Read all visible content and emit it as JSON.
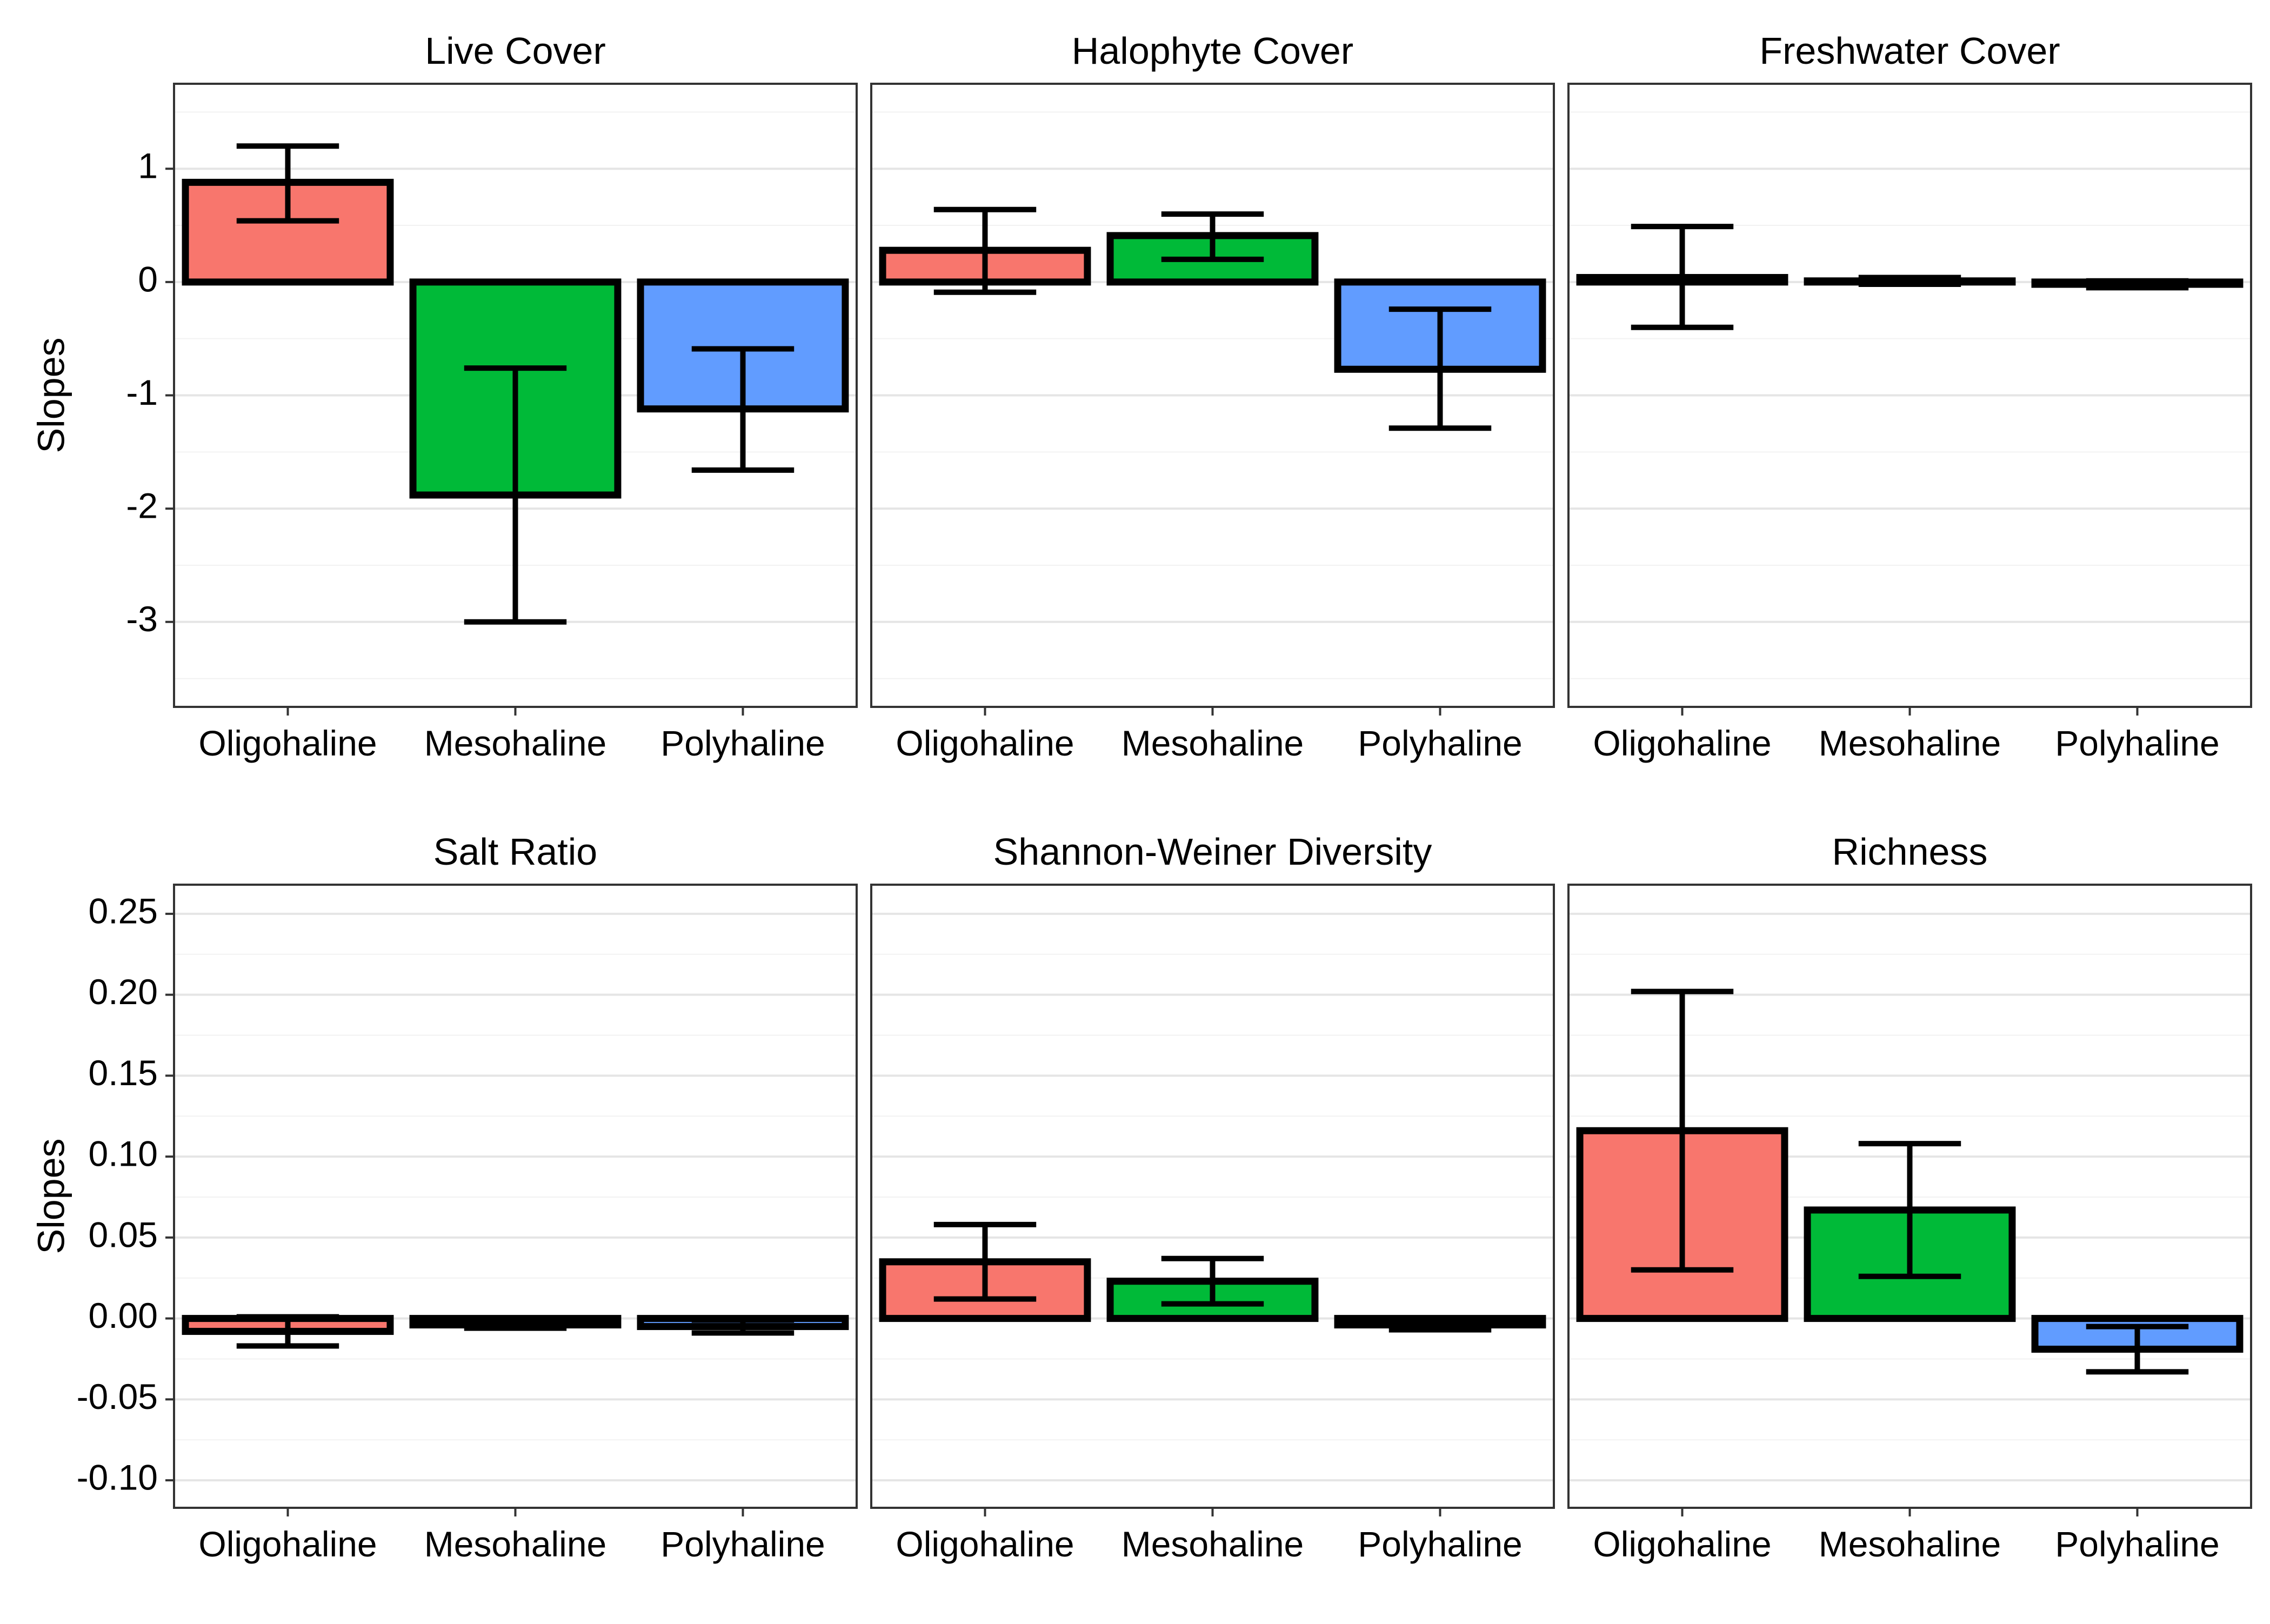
{
  "chart_data": {
    "type": "bar",
    "layout": "2x3 faceted bar charts with error bars",
    "grid": true,
    "shared_ylabel": "Slopes",
    "categories": [
      "Oligohaline",
      "Mesohaline",
      "Polyhaline"
    ],
    "colors": {
      "Oligohaline": "#F8766D",
      "Mesohaline": "#00BA38",
      "Polyhaline": "#619CFF",
      "bar_outline": "#000000",
      "panel_border": "#333333",
      "grid_major": "#E5E5E5",
      "grid_minor": "#F2F2F2"
    },
    "rows": [
      {
        "ylabel": "Slopes",
        "ylim": [
          -3.75,
          1.75
        ],
        "yticks": [
          1,
          0,
          -1,
          -2,
          -3
        ],
        "ytick_labels": [
          "1",
          "0",
          "-1",
          "-2",
          "-3"
        ],
        "panels": [
          {
            "title": "Live Cover",
            "categories": [
              "Oligohaline",
              "Mesohaline",
              "Polyhaline"
            ],
            "values": [
              0.88,
              -1.88,
              -1.12
            ],
            "error_low": [
              0.54,
              -3.0,
              -1.66
            ],
            "error_high": [
              1.2,
              -0.76,
              -0.59
            ]
          },
          {
            "title": "Halophyte Cover",
            "categories": [
              "Oligohaline",
              "Mesohaline",
              "Polyhaline"
            ],
            "values": [
              0.28,
              0.41,
              -0.77
            ],
            "error_low": [
              -0.09,
              0.2,
              -1.29
            ],
            "error_high": [
              0.64,
              0.6,
              -0.24
            ]
          },
          {
            "title": "Freshwater Cover",
            "categories": [
              "Oligohaline",
              "Mesohaline",
              "Polyhaline"
            ],
            "values": [
              0.04,
              0.01,
              -0.02
            ],
            "error_low": [
              -0.4,
              -0.02,
              -0.05
            ],
            "error_high": [
              0.49,
              0.04,
              0.01
            ]
          }
        ]
      },
      {
        "ylabel": "Slopes",
        "ylim": [
          -0.117,
          0.268
        ],
        "yticks": [
          0.25,
          0.2,
          0.15,
          0.1,
          0.05,
          0.0,
          -0.05,
          -0.1
        ],
        "ytick_labels": [
          "0.25",
          "0.20",
          "0.15",
          "0.10",
          "0.05",
          "0.00",
          "-0.05",
          "-0.10"
        ],
        "panels": [
          {
            "title": "Salt Ratio",
            "categories": [
              "Oligohaline",
              "Mesohaline",
              "Polyhaline"
            ],
            "values": [
              -0.008,
              -0.004,
              -0.005
            ],
            "error_low": [
              -0.017,
              -0.006,
              -0.009
            ],
            "error_high": [
              0.001,
              -0.002,
              -0.001
            ]
          },
          {
            "title": "Shannon-Weiner Diversity",
            "categories": [
              "Oligohaline",
              "Mesohaline",
              "Polyhaline"
            ],
            "values": [
              0.035,
              0.023,
              -0.004
            ],
            "error_low": [
              0.012,
              0.009,
              -0.007
            ],
            "error_high": [
              0.058,
              0.037,
              -0.001
            ]
          },
          {
            "title": "Richness",
            "categories": [
              "Oligohaline",
              "Mesohaline",
              "Polyhaline"
            ],
            "values": [
              0.116,
              0.067,
              -0.019
            ],
            "error_low": [
              0.03,
              0.026,
              -0.033
            ],
            "error_high": [
              0.202,
              0.108,
              -0.005
            ]
          }
        ]
      }
    ]
  }
}
